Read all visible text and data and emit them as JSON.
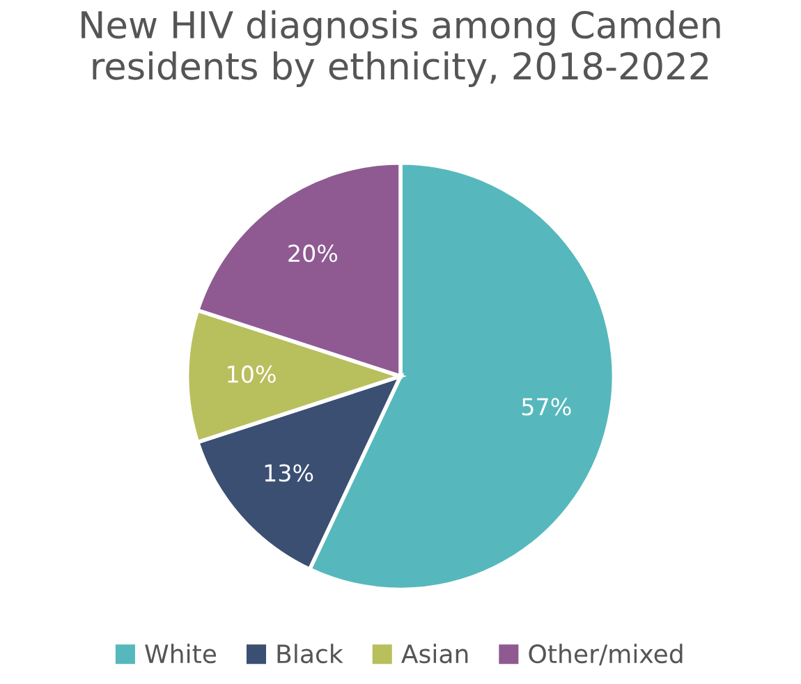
{
  "chart_data": {
    "type": "pie",
    "title": "New HIV diagnosis among Camden residents by ethnicity, 2018-2022",
    "categories": [
      "White",
      "Black",
      "Asian",
      "Other/mixed"
    ],
    "values": [
      57,
      13,
      10,
      20
    ],
    "value_labels": [
      "57%",
      "13%",
      "10%",
      "20%"
    ],
    "colors": [
      "#56b8bc",
      "#3b4f73",
      "#b8bf5d",
      "#8f5a92"
    ],
    "legend": "bottom"
  }
}
